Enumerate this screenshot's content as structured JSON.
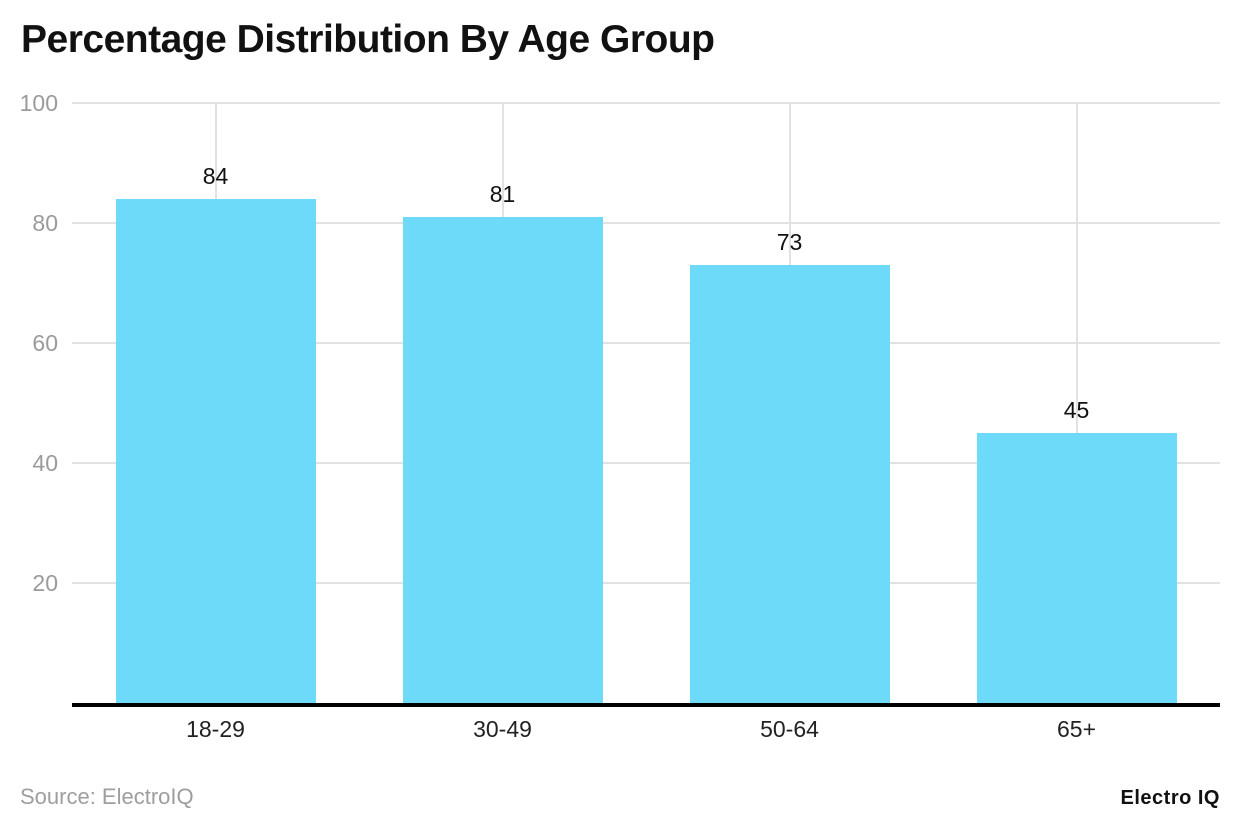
{
  "title": "Percentage Distribution By Age Group",
  "source": {
    "label": "Source: ElectroIQ"
  },
  "branding": {
    "label": "Electro IQ"
  },
  "colors": {
    "bar": "#6EDAFA",
    "grid": "#E2E2E2",
    "axis": "#000000",
    "tick_label": "#9B9B9B",
    "value_label": "#111111",
    "category_label": "#222222",
    "title": "#111111",
    "source": "#9E9E9E"
  },
  "chart_data": {
    "type": "bar",
    "categories": [
      "18-29",
      "30-49",
      "50-64",
      "65+"
    ],
    "values": [
      84,
      81,
      73,
      45
    ],
    "title": "Percentage Distribution By Age Group",
    "xlabel": "",
    "ylabel": "",
    "ylim": [
      0,
      100
    ],
    "yticks": [
      20,
      40,
      60,
      80,
      100
    ],
    "grid": true,
    "legend": false,
    "bar_labels_shown": true
  }
}
